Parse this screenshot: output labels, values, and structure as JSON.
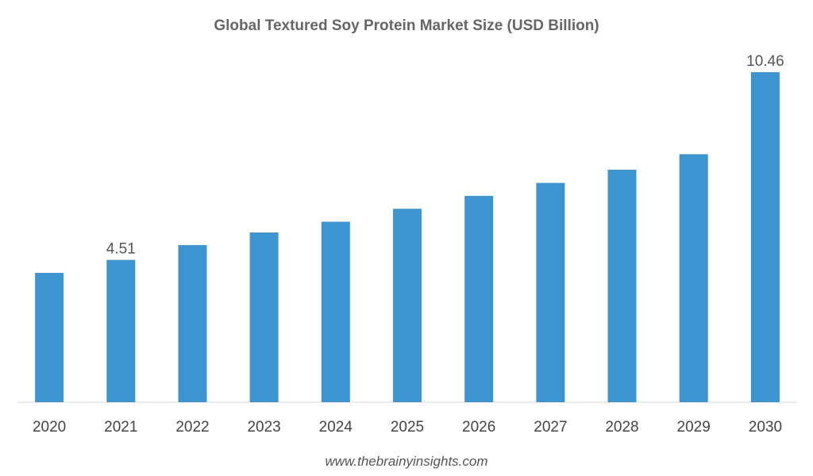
{
  "chart_data": {
    "type": "bar",
    "title": "Global Textured Soy Protein Market Size (USD Billion)",
    "categories": [
      "2020",
      "2021",
      "2022",
      "2023",
      "2024",
      "2025",
      "2026",
      "2027",
      "2028",
      "2029",
      "2030"
    ],
    "values": [
      4.1,
      4.51,
      4.98,
      5.38,
      5.72,
      6.13,
      6.54,
      6.95,
      7.37,
      7.86,
      10.46
    ],
    "data_labels": [
      {
        "category": "2021",
        "text": "4.51"
      },
      {
        "category": "2030",
        "text": "10.46"
      }
    ],
    "ylim": [
      0,
      10.46
    ],
    "xlabel": "",
    "ylabel": "",
    "grid": false,
    "legend": "none",
    "bar_color": "#3d94cf",
    "source": "www.thebrainyinsights.com"
  }
}
